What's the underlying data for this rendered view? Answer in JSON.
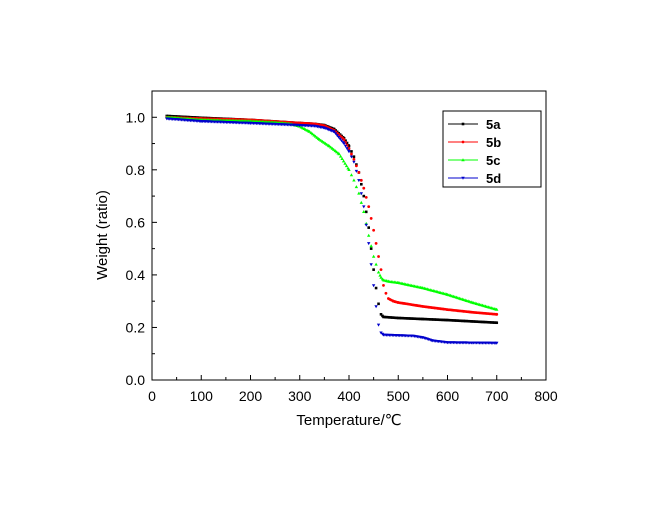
{
  "chart_data": {
    "type": "line",
    "title": "",
    "xlabel": "Temperature/℃",
    "ylabel": "Weight (ratio)",
    "xlim": [
      0,
      800
    ],
    "ylim": [
      0.0,
      1.1
    ],
    "x_ticks": [
      "0",
      "100",
      "200",
      "300",
      "400",
      "500",
      "600",
      "700",
      "800"
    ],
    "y_ticks": [
      "0.0",
      "0.2",
      "0.4",
      "0.6",
      "0.8",
      "1.0"
    ],
    "grid": false,
    "legend_position": "top-right",
    "series": [
      {
        "name": "5a",
        "color": "#000000",
        "marker": "square",
        "x": [
          30,
          100,
          200,
          300,
          330,
          350,
          370,
          390,
          400,
          410,
          420,
          430,
          440,
          445,
          450,
          455,
          460,
          465,
          470,
          500,
          550,
          600,
          650,
          700
        ],
        "y": [
          1.005,
          0.998,
          0.99,
          0.978,
          0.975,
          0.97,
          0.955,
          0.92,
          0.89,
          0.85,
          0.79,
          0.7,
          0.58,
          0.5,
          0.42,
          0.35,
          0.29,
          0.25,
          0.24,
          0.236,
          0.232,
          0.228,
          0.223,
          0.218
        ]
      },
      {
        "name": "5b",
        "color": "#ff0000",
        "marker": "circle",
        "x": [
          30,
          100,
          200,
          300,
          330,
          350,
          370,
          390,
          400,
          410,
          420,
          430,
          440,
          450,
          460,
          465,
          470,
          475,
          480,
          490,
          500,
          550,
          600,
          650,
          700
        ],
        "y": [
          1.0,
          0.995,
          0.99,
          0.978,
          0.975,
          0.968,
          0.95,
          0.915,
          0.88,
          0.84,
          0.79,
          0.73,
          0.66,
          0.57,
          0.47,
          0.42,
          0.36,
          0.33,
          0.31,
          0.3,
          0.295,
          0.28,
          0.268,
          0.258,
          0.25
        ]
      },
      {
        "name": "5c",
        "color": "#00ff00",
        "marker": "triangle",
        "x": [
          30,
          100,
          200,
          250,
          280,
          300,
          320,
          340,
          360,
          380,
          400,
          410,
          420,
          430,
          440,
          450,
          460,
          465,
          470,
          480,
          500,
          550,
          600,
          650,
          700
        ],
        "y": [
          1.0,
          0.99,
          0.985,
          0.98,
          0.975,
          0.965,
          0.945,
          0.915,
          0.89,
          0.86,
          0.8,
          0.76,
          0.71,
          0.64,
          0.55,
          0.47,
          0.41,
          0.39,
          0.38,
          0.375,
          0.37,
          0.35,
          0.325,
          0.295,
          0.268
        ]
      },
      {
        "name": "5d",
        "color": "#0000cc",
        "marker": "triangle-down",
        "x": [
          30,
          100,
          200,
          300,
          330,
          350,
          370,
          390,
          400,
          410,
          420,
          430,
          440,
          450,
          455,
          460,
          465,
          470,
          500,
          530,
          550,
          570,
          600,
          650,
          700
        ],
        "y": [
          0.995,
          0.985,
          0.978,
          0.97,
          0.967,
          0.96,
          0.945,
          0.9,
          0.87,
          0.83,
          0.76,
          0.66,
          0.52,
          0.36,
          0.28,
          0.21,
          0.18,
          0.172,
          0.17,
          0.168,
          0.162,
          0.15,
          0.143,
          0.142,
          0.141
        ]
      }
    ]
  }
}
